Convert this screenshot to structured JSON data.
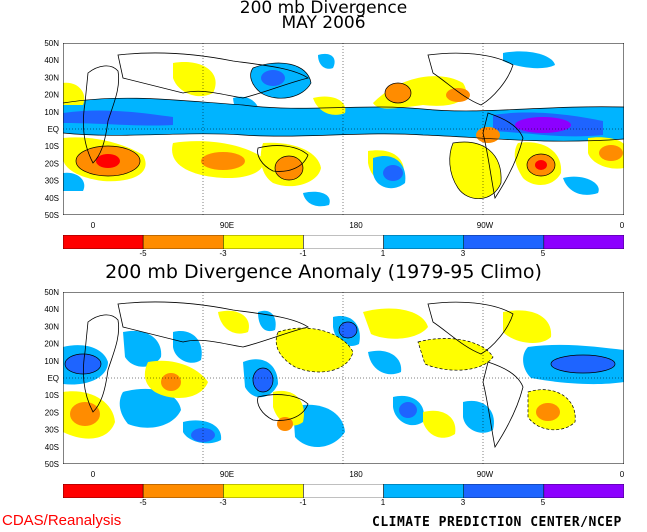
{
  "titles": {
    "map1_line1": "200 mb Divergence",
    "map1_line2": "MAY 2006",
    "map2": "200 mb Divergence Anomaly (1979-95 Climo)"
  },
  "axes": {
    "lat_labels": [
      "50N",
      "40N",
      "30N",
      "20N",
      "10N",
      "EQ",
      "10S",
      "20S",
      "30S",
      "40S",
      "50S"
    ],
    "lon_labels": [
      "0",
      "90E",
      "180",
      "90W",
      "0"
    ]
  },
  "colorbar": {
    "colors": [
      "#ff0000",
      "#ff8c00",
      "#ffff00",
      "#ffffff",
      "#00b4ff",
      "#1e64ff",
      "#8c00ff"
    ],
    "ticks": [
      "-5",
      "-3",
      "-1",
      "1",
      "3",
      "5"
    ]
  },
  "footer": {
    "left": "CDAS/Reanalysis",
    "right": "CLIMATE PREDICTION CENTER/NCEP"
  }
}
